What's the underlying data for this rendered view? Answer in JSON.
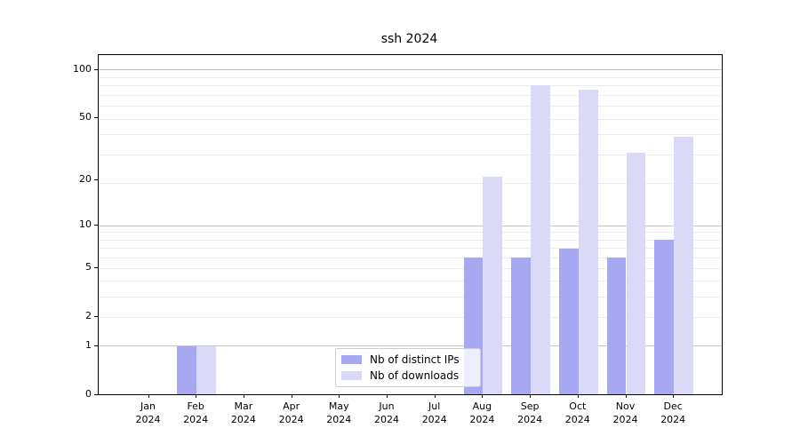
{
  "page": {
    "background_color": "#ffffff"
  },
  "chart_data": {
    "type": "bar",
    "title": "ssh 2024",
    "categories": [
      "Jan",
      "Feb",
      "Mar",
      "Apr",
      "May",
      "Jun",
      "Jul",
      "Aug",
      "Sep",
      "Oct",
      "Nov",
      "Dec"
    ],
    "category_year": "2024",
    "x_tick_labels": [
      "Jan 2024",
      "Feb 2024",
      "Mar 2024",
      "Apr 2024",
      "May 2024",
      "Jun 2024",
      "Jul 2024",
      "Aug 2024",
      "Sep 2024",
      "Oct 2024",
      "Nov 2024",
      "Dec 2024"
    ],
    "series": [
      {
        "name": "Nb of distinct IPs",
        "color": "#a7a7f2",
        "values": [
          0,
          1,
          0,
          0,
          0,
          0,
          0,
          6,
          6,
          7,
          6,
          8
        ]
      },
      {
        "name": "Nb of downloads",
        "color": "#dadaf8",
        "values": [
          0,
          1,
          0,
          0,
          0,
          0,
          0,
          21,
          80,
          75,
          30,
          38
        ]
      }
    ],
    "y_axis": {
      "scale": "log10(1+x)",
      "tick_values": [
        0,
        1,
        2,
        5,
        10,
        20,
        50,
        100
      ],
      "min": 0,
      "top_visible_value": 122
    },
    "grid": {
      "enabled": true,
      "major_line_values": [
        1,
        10,
        100
      ],
      "minor_line_plus1_values": [
        3,
        4,
        5,
        6,
        7,
        8,
        9,
        10,
        20,
        30,
        40,
        50,
        60,
        70,
        80,
        90
      ],
      "major_color": "#c6c6c6",
      "minor_color": "#ececec"
    },
    "legend": {
      "position": "bottom-center",
      "entries": [
        "Nb of distinct IPs",
        "Nb of downloads"
      ]
    }
  }
}
